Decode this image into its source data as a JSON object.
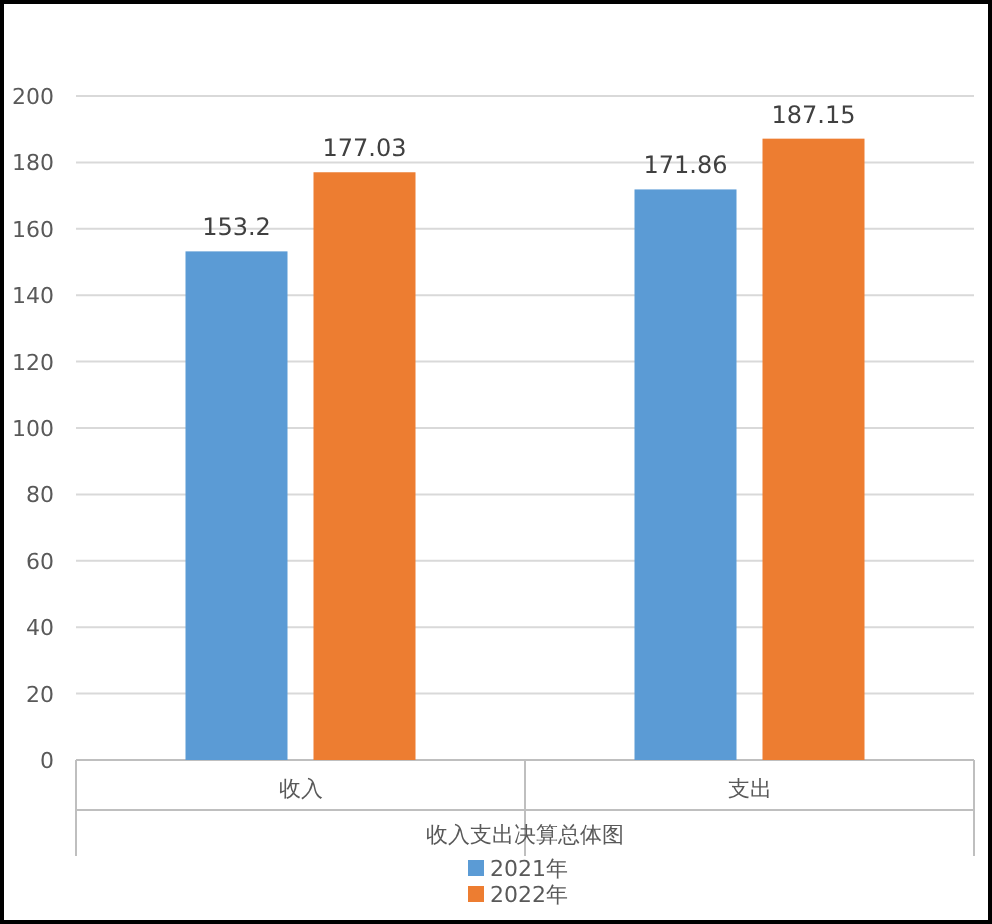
{
  "chart_data": {
    "type": "bar",
    "xlabel": "收入支出决算总体图",
    "categories": [
      "收入",
      "支出"
    ],
    "series": [
      {
        "name": "2021年",
        "color": "#5b9bd5",
        "values": [
          153.2,
          171.86
        ]
      },
      {
        "name": "2022年",
        "color": "#ed7d31",
        "values": [
          177.03,
          187.15
        ]
      }
    ],
    "ylim": [
      0,
      200
    ],
    "yticks": [
      0,
      20,
      40,
      60,
      80,
      100,
      120,
      140,
      160,
      180,
      200
    ],
    "grid": "y",
    "data_labels": true,
    "legend": "bottom"
  }
}
